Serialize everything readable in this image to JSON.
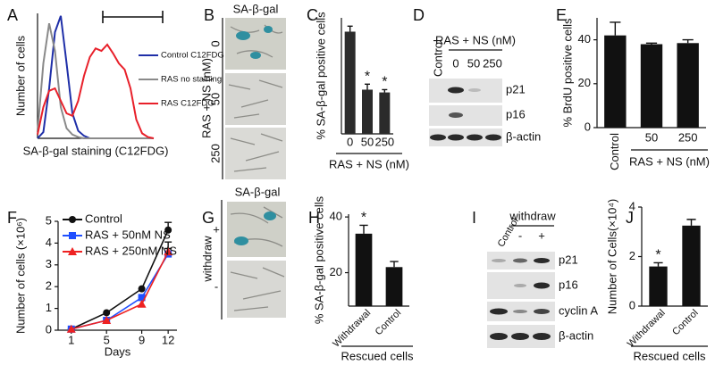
{
  "chart_data": [
    {
      "panel": "A",
      "type": "line",
      "xlabel": "SA-β-gal staining (C12FDG)",
      "ylabel": "Number of cells",
      "x": [
        0,
        5,
        10,
        15,
        20,
        25,
        30,
        35,
        40,
        45,
        50,
        55,
        60,
        65,
        70,
        75,
        80,
        85,
        90,
        95,
        100
      ],
      "xlim": [
        0,
        100
      ],
      "ylim": [
        0,
        100
      ],
      "series": [
        {
          "name": "Control C12FDG",
          "color": "#1f2fa8",
          "values": [
            0,
            5,
            40,
            85,
            98,
            60,
            20,
            6,
            2,
            0,
            0,
            0,
            0,
            0,
            0,
            0,
            0,
            0,
            0,
            0,
            0
          ]
        },
        {
          "name": "RAS no staining",
          "color": "#8a8a8a",
          "values": [
            5,
            60,
            92,
            70,
            25,
            8,
            3,
            1,
            0,
            0,
            0,
            0,
            0,
            0,
            0,
            0,
            0,
            0,
            0,
            0,
            0
          ]
        },
        {
          "name": "RAS C12FDG",
          "color": "#e8202a",
          "values": [
            3,
            25,
            38,
            40,
            30,
            20,
            18,
            30,
            50,
            65,
            72,
            70,
            75,
            68,
            60,
            55,
            40,
            15,
            4,
            1,
            0
          ]
        }
      ]
    },
    {
      "panel": "C",
      "type": "bar",
      "ylabel": "% SA-β-gal positive cells",
      "xlabel": "RAS + NS (nM)",
      "categories": [
        "0",
        "50",
        "250"
      ],
      "values": [
        37,
        16,
        15
      ],
      "errors": [
        2,
        2,
        1
      ],
      "significance": [
        null,
        "*",
        "*"
      ],
      "color": "#2b2b2b",
      "ylim": [
        0,
        42
      ]
    },
    {
      "panel": "E",
      "type": "bar",
      "ylabel": "% BrdU positive cells",
      "xlabel": "RAS + NS (nM)",
      "categories": [
        "Control",
        "50",
        "250"
      ],
      "values": [
        42,
        38,
        38.5
      ],
      "errors": [
        6,
        0.5,
        1.5
      ],
      "color": "#111111",
      "ylim": [
        0,
        50
      ],
      "yticks": [
        0,
        20,
        40
      ]
    },
    {
      "panel": "F",
      "type": "line",
      "xlabel": "Days",
      "ylabel": "Number of cells (×10⁶)",
      "x": [
        1,
        5,
        9,
        12
      ],
      "xticks": [
        1,
        5,
        9,
        12
      ],
      "xlim": [
        -0.5,
        13
      ],
      "ylim": [
        0,
        5
      ],
      "yticks": [
        0,
        1,
        2,
        3,
        4,
        5
      ],
      "series": [
        {
          "name": "Control",
          "color": "#111111",
          "marker": "circle",
          "values": [
            0.05,
            0.8,
            1.9,
            4.6
          ],
          "errors": [
            null,
            null,
            null,
            0.35
          ]
        },
        {
          "name": "RAS + 50nM NS",
          "color": "#1f4fff",
          "marker": "square",
          "values": [
            0.05,
            0.45,
            1.5,
            3.5
          ],
          "errors": [
            null,
            null,
            null,
            0.25
          ]
        },
        {
          "name": "RAS + 250nM NS",
          "color": "#ee2222",
          "marker": "triangle",
          "values": [
            0.05,
            0.45,
            1.2,
            3.6
          ],
          "errors": [
            null,
            null,
            null,
            0.45
          ]
        }
      ]
    },
    {
      "panel": "H",
      "type": "bar",
      "ylabel": "% SA-β-gal positive cells",
      "xlabel": "Rescued cells",
      "categories": [
        "Withdrawal",
        "Control"
      ],
      "values": [
        34,
        22
      ],
      "errors": [
        3,
        2
      ],
      "significance": [
        "*",
        null
      ],
      "color": "#111111",
      "ylim": [
        8,
        41
      ],
      "yticks": [
        20,
        40
      ]
    },
    {
      "panel": "J",
      "type": "bar",
      "ylabel": "Number of Cells(×10⁴)",
      "xlabel": "Rescued cells",
      "categories": [
        "Withdrawal",
        "Control"
      ],
      "values": [
        1.6,
        3.25
      ],
      "errors": [
        0.15,
        0.25
      ],
      "significance": [
        "*",
        null
      ],
      "color": "#111111",
      "ylim": [
        0,
        4
      ],
      "yticks": [
        0,
        2,
        4
      ]
    }
  ],
  "figure_panels": [
    {
      "panel": "B",
      "title": "SA-β-gal",
      "axis_label": "RAS + NS (nM)",
      "rows": [
        "0",
        "50",
        "250"
      ]
    },
    {
      "panel": "D",
      "group_label": "RAS + NS (nM)",
      "columns": [
        "Control",
        "0",
        "50",
        "250"
      ],
      "bands": [
        "p21",
        "p16",
        "β-actin"
      ]
    },
    {
      "panel": "G",
      "title": "SA-β-gal",
      "axis_label": "withdraw",
      "rows": [
        "+",
        "-"
      ]
    },
    {
      "panel": "I",
      "group_label": "withdraw",
      "columns": [
        "Control",
        "-",
        "+"
      ],
      "bands": [
        "p21",
        "p16",
        "cyclin A",
        "β-actin"
      ]
    }
  ]
}
